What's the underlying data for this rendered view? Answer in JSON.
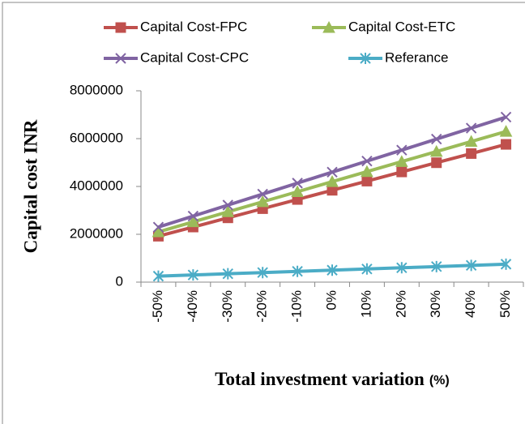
{
  "chart_data": {
    "type": "line",
    "y_label": "Capital cost INR",
    "x_label": "Total investment variation",
    "x_label_unit": "(%)",
    "categories": [
      "-50%",
      "-40%",
      "-30%",
      "-20%",
      "-10%",
      "0%",
      "10%",
      "20%",
      "30%",
      "40%",
      "50%"
    ],
    "series": [
      {
        "name": "Capital Cost-FPC",
        "color": "#C0504D",
        "marker": "square",
        "values": [
          1920000,
          2304000,
          2688000,
          3072000,
          3456000,
          3840000,
          4224000,
          4608000,
          4992000,
          5376000,
          5760000
        ]
      },
      {
        "name": "Capital Cost-ETC",
        "color": "#9BBB59",
        "marker": "triangle",
        "values": [
          2100000,
          2520000,
          2940000,
          3360000,
          3780000,
          4200000,
          4620000,
          5040000,
          5460000,
          5880000,
          6300000
        ]
      },
      {
        "name": "Capital Cost-CPC",
        "color": "#8064A2",
        "marker": "x",
        "values": [
          2300000,
          2760000,
          3220000,
          3680000,
          4140000,
          4600000,
          5060000,
          5520000,
          5980000,
          6440000,
          6900000
        ]
      },
      {
        "name": "Referance",
        "color": "#4BACC6",
        "marker": "star",
        "values": [
          250000,
          300000,
          350000,
          400000,
          450000,
          500000,
          550000,
          600000,
          650000,
          700000,
          750000
        ]
      }
    ],
    "ylim": [
      0,
      8000000
    ],
    "yticks": [
      0,
      2000000,
      4000000,
      6000000,
      8000000
    ],
    "grid": false,
    "legend": "top"
  }
}
